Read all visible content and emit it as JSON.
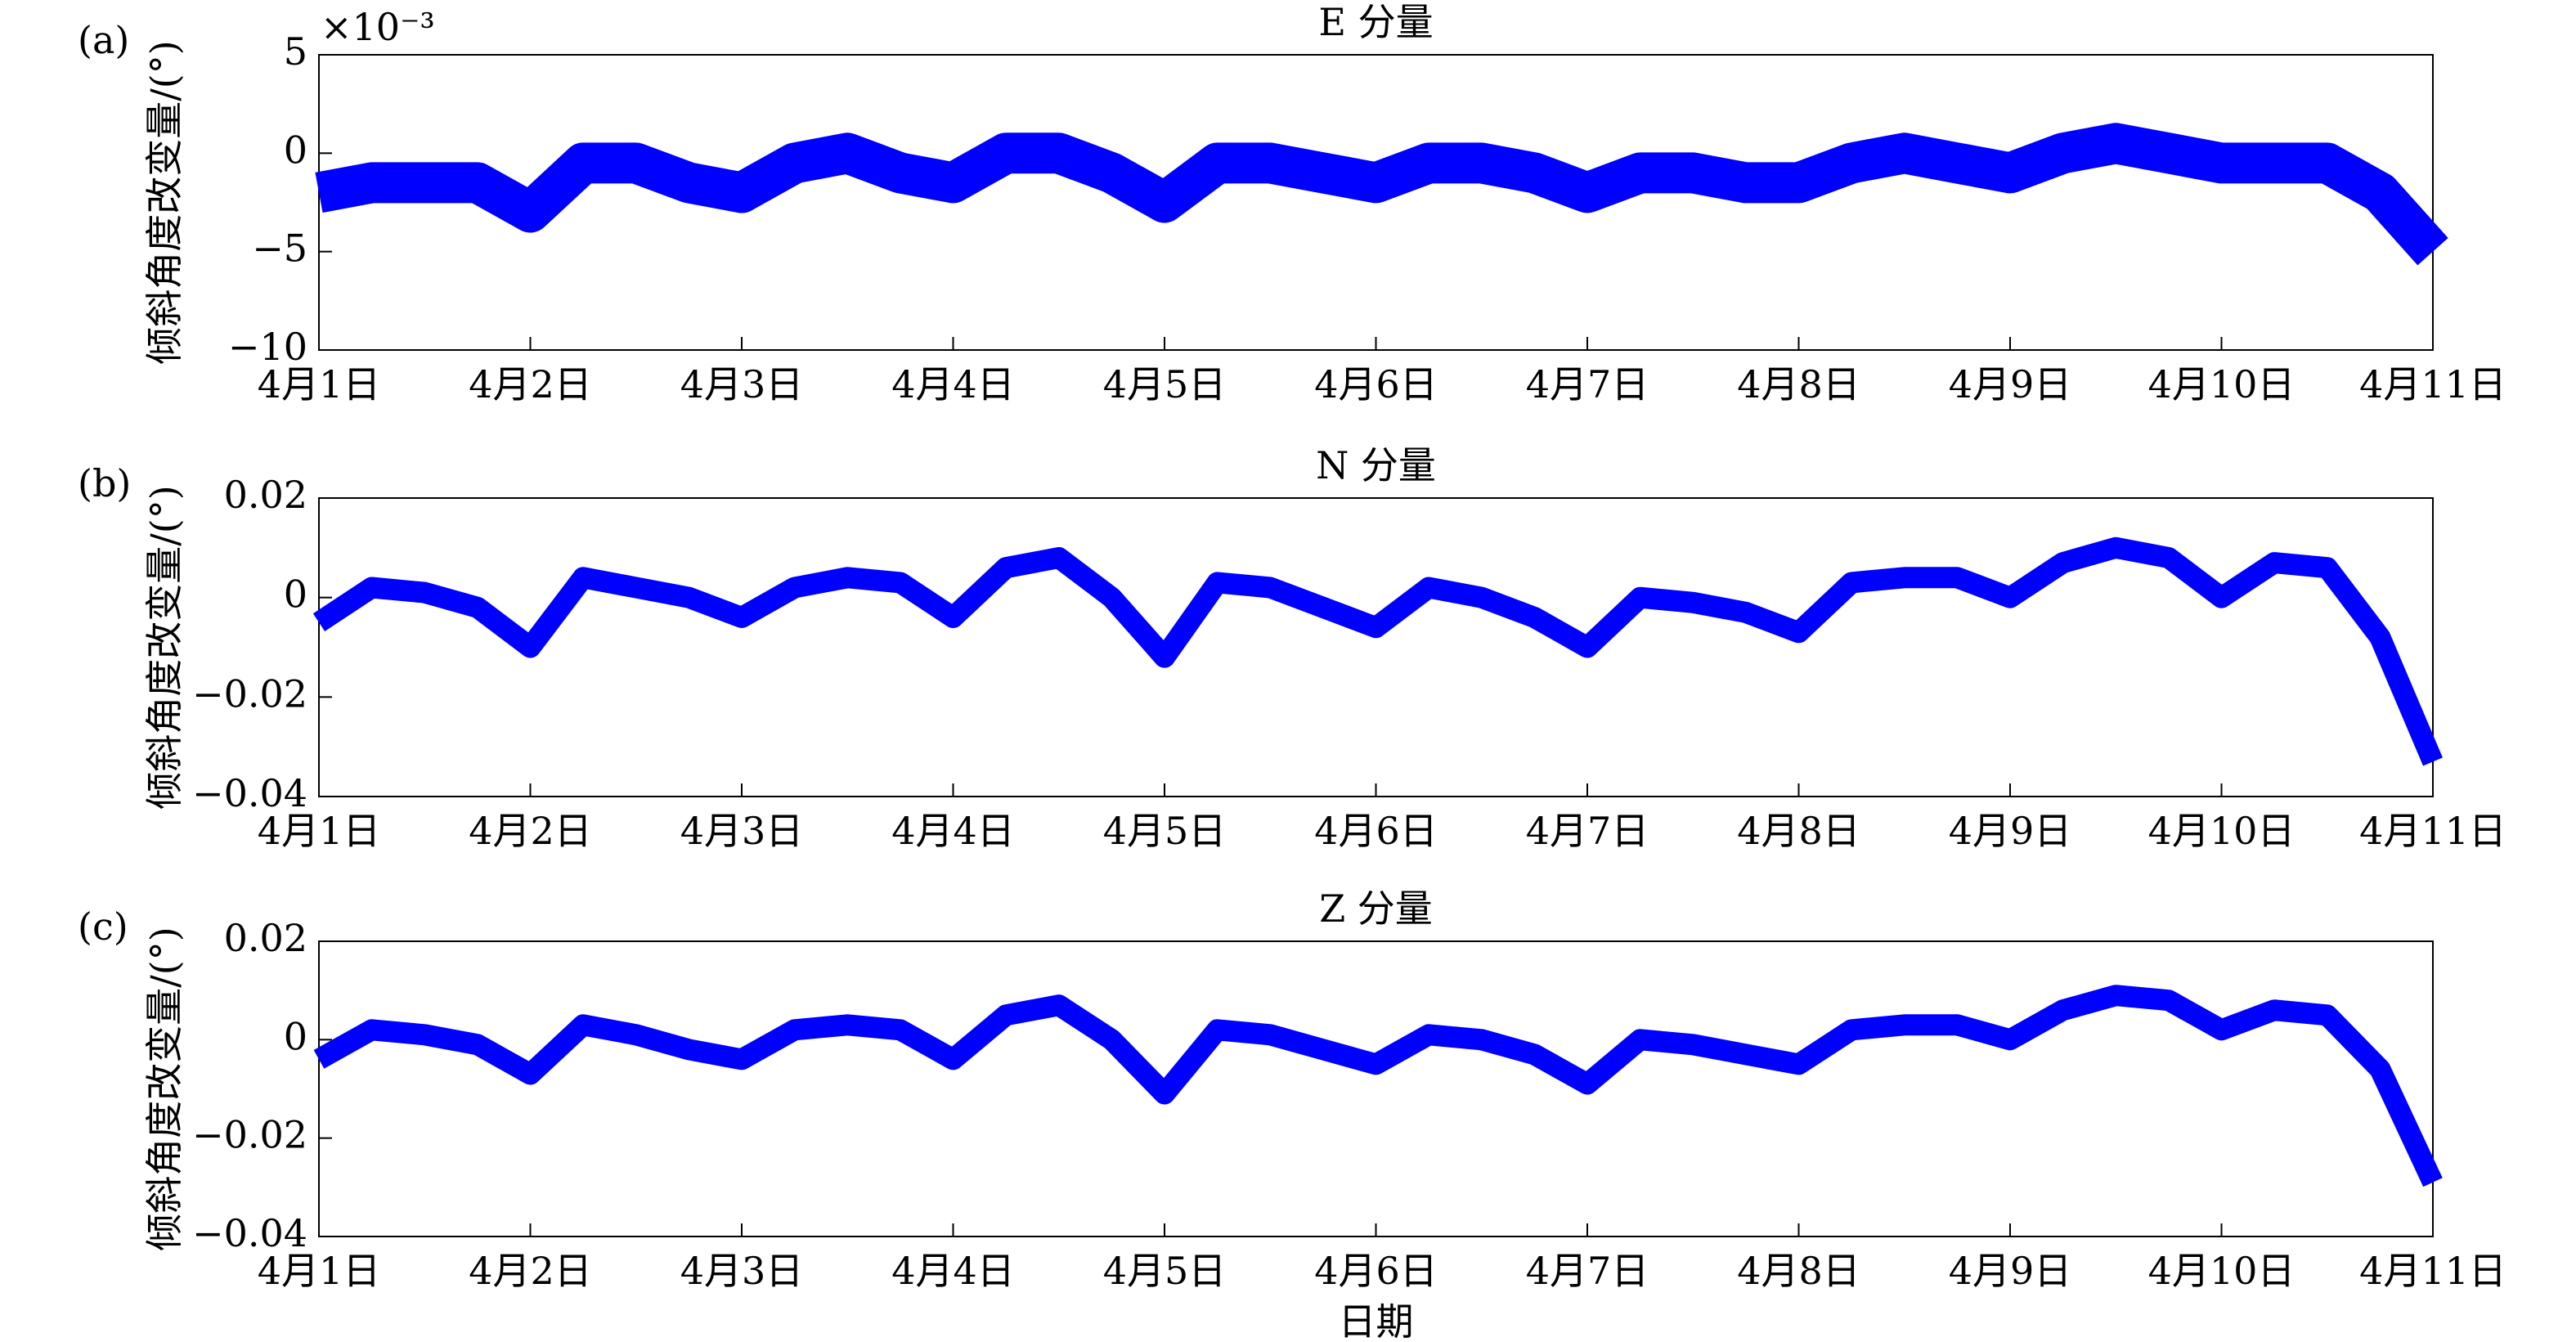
{
  "chart_data": [
    {
      "type": "line",
      "panel_label": "(a)",
      "title": "E 分量",
      "ylabel": "倾斜角度改变量/(°)",
      "y_multiplier": "×10⁻³",
      "x": [
        1,
        1.25,
        1.5,
        1.75,
        2,
        2.25,
        2.5,
        2.75,
        3,
        3.25,
        3.5,
        3.75,
        4,
        4.25,
        4.5,
        4.75,
        5,
        5.25,
        5.5,
        5.75,
        6,
        6.25,
        6.5,
        6.75,
        7,
        7.25,
        7.5,
        7.75,
        8,
        8.25,
        8.5,
        8.75,
        9,
        9.25,
        9.5,
        9.75,
        10,
        10.25,
        10.5,
        10.75,
        11
      ],
      "series": [
        {
          "color": "#0000ff",
          "values": [
            -2,
            -1.5,
            -1.5,
            -1.5,
            -3,
            -0.5,
            -0.5,
            -1.5,
            -2,
            -0.5,
            0,
            -1,
            -1.5,
            0,
            0,
            -1,
            -2.5,
            -0.5,
            -0.5,
            -1,
            -1.5,
            -0.5,
            -0.5,
            -1,
            -2,
            -1,
            -1,
            -1.5,
            -1.5,
            -0.5,
            0,
            -0.5,
            -1,
            0,
            0.5,
            0,
            -0.5,
            -0.5,
            -0.5,
            -2,
            -5
          ]
        }
      ],
      "xlim": [
        1,
        11
      ],
      "xticks": [
        {
          "value": 1,
          "label": "4月1日"
        },
        {
          "value": 2,
          "label": "4月2日"
        },
        {
          "value": 3,
          "label": "4月3日"
        },
        {
          "value": 4,
          "label": "4月4日"
        },
        {
          "value": 5,
          "label": "4月5日"
        },
        {
          "value": 6,
          "label": "4月6日"
        },
        {
          "value": 7,
          "label": "4月7日"
        },
        {
          "value": 8,
          "label": "4月8日"
        },
        {
          "value": 9,
          "label": "4月9日"
        },
        {
          "value": 10,
          "label": "4月10日"
        },
        {
          "value": 11,
          "label": "4月11日"
        }
      ],
      "ylim": [
        -10,
        5
      ],
      "yticks": [
        {
          "value": -10,
          "label": "−10"
        },
        {
          "value": -5,
          "label": "−5"
        },
        0,
        5
      ]
    },
    {
      "type": "line",
      "panel_label": "(b)",
      "title": "N 分量",
      "ylabel": "倾斜角度改变量/(°)",
      "x": [
        1,
        1.25,
        1.5,
        1.75,
        2,
        2.25,
        2.5,
        2.75,
        3,
        3.25,
        3.5,
        3.75,
        4,
        4.25,
        4.5,
        4.75,
        5,
        5.25,
        5.5,
        5.75,
        6,
        6.25,
        6.5,
        6.75,
        7,
        7.25,
        7.5,
        7.75,
        8,
        8.25,
        8.5,
        8.75,
        9,
        9.25,
        9.5,
        9.75,
        10,
        10.25,
        10.5,
        10.75,
        11
      ],
      "series": [
        {
          "color": "#0000ff",
          "values": [
            -0.005,
            0.002,
            0.001,
            -0.002,
            -0.01,
            0.004,
            0.002,
            0.0,
            -0.004,
            0.002,
            0.004,
            0.003,
            -0.004,
            0.006,
            0.008,
            0.0,
            -0.012,
            0.003,
            0.002,
            -0.002,
            -0.006,
            0.002,
            0.0,
            -0.004,
            -0.01,
            0.0,
            -0.001,
            -0.003,
            -0.007,
            0.003,
            0.004,
            0.004,
            0.0,
            0.007,
            0.01,
            0.008,
            0.0,
            0.007,
            0.006,
            -0.008,
            -0.033
          ]
        }
      ],
      "xlim": [
        1,
        11
      ],
      "xticks": [
        {
          "value": 1,
          "label": "4月1日"
        },
        {
          "value": 2,
          "label": "4月2日"
        },
        {
          "value": 3,
          "label": "4月3日"
        },
        {
          "value": 4,
          "label": "4月4日"
        },
        {
          "value": 5,
          "label": "4月5日"
        },
        {
          "value": 6,
          "label": "4月6日"
        },
        {
          "value": 7,
          "label": "4月7日"
        },
        {
          "value": 8,
          "label": "4月8日"
        },
        {
          "value": 9,
          "label": "4月9日"
        },
        {
          "value": 10,
          "label": "4月10日"
        },
        {
          "value": 11,
          "label": "4月11日"
        }
      ],
      "ylim": [
        -0.04,
        0.02
      ],
      "yticks": [
        {
          "value": -0.04,
          "label": "−0.04"
        },
        {
          "value": -0.02,
          "label": "−0.02"
        },
        0,
        0.02
      ]
    },
    {
      "type": "line",
      "panel_label": "(c)",
      "title": "Z 分量",
      "ylabel": "倾斜角度改变量/(°)",
      "xlabel": "日期",
      "x": [
        1,
        1.25,
        1.5,
        1.75,
        2,
        2.25,
        2.5,
        2.75,
        3,
        3.25,
        3.5,
        3.75,
        4,
        4.25,
        4.5,
        4.75,
        5,
        5.25,
        5.5,
        5.75,
        6,
        6.25,
        6.5,
        6.75,
        7,
        7.25,
        7.5,
        7.75,
        8,
        8.25,
        8.5,
        8.75,
        9,
        9.25,
        9.5,
        9.75,
        10,
        10.25,
        10.5,
        10.75,
        11
      ],
      "series": [
        {
          "color": "#0000ff",
          "values": [
            -0.004,
            0.002,
            0.001,
            -0.001,
            -0.007,
            0.003,
            0.001,
            -0.002,
            -0.004,
            0.002,
            0.003,
            0.002,
            -0.004,
            0.005,
            0.007,
            0.0,
            -0.011,
            0.002,
            0.001,
            -0.002,
            -0.005,
            0.001,
            0.0,
            -0.003,
            -0.009,
            0.0,
            -0.001,
            -0.003,
            -0.005,
            0.002,
            0.003,
            0.003,
            0.0,
            0.006,
            0.009,
            0.008,
            0.002,
            0.006,
            0.005,
            -0.006,
            -0.029
          ]
        }
      ],
      "xlim": [
        1,
        11
      ],
      "xticks": [
        {
          "value": 1,
          "label": "4月1日"
        },
        {
          "value": 2,
          "label": "4月2日"
        },
        {
          "value": 3,
          "label": "4月3日"
        },
        {
          "value": 4,
          "label": "4月4日"
        },
        {
          "value": 5,
          "label": "4月5日"
        },
        {
          "value": 6,
          "label": "4月6日"
        },
        {
          "value": 7,
          "label": "4月7日"
        },
        {
          "value": 8,
          "label": "4月8日"
        },
        {
          "value": 9,
          "label": "4月9日"
        },
        {
          "value": 10,
          "label": "4月10日"
        },
        {
          "value": 11,
          "label": "4月11日"
        }
      ],
      "ylim": [
        -0.04,
        0.02
      ],
      "yticks": [
        {
          "value": -0.04,
          "label": "−0.04"
        },
        {
          "value": -0.02,
          "label": "−0.02"
        },
        0,
        0.02
      ]
    }
  ]
}
